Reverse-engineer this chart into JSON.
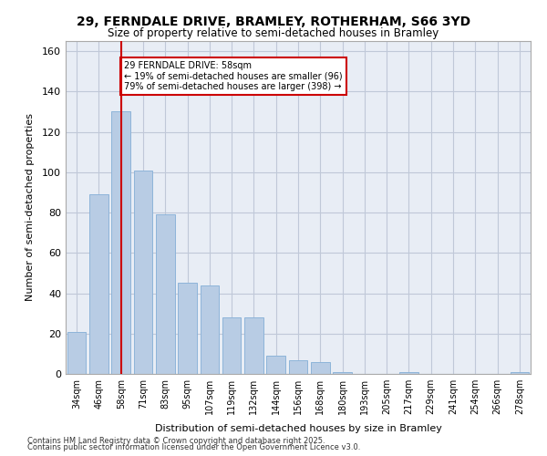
{
  "title_line1": "29, FERNDALE DRIVE, BRAMLEY, ROTHERHAM, S66 3YD",
  "title_line2": "Size of property relative to semi-detached houses in Bramley",
  "xlabel": "Distribution of semi-detached houses by size in Bramley",
  "ylabel": "Number of semi-detached properties",
  "categories": [
    "34sqm",
    "46sqm",
    "58sqm",
    "71sqm",
    "83sqm",
    "95sqm",
    "107sqm",
    "119sqm",
    "132sqm",
    "144sqm",
    "156sqm",
    "168sqm",
    "180sqm",
    "193sqm",
    "205sqm",
    "217sqm",
    "229sqm",
    "241sqm",
    "254sqm",
    "266sqm",
    "278sqm"
  ],
  "values": [
    21,
    89,
    130,
    101,
    79,
    45,
    44,
    28,
    28,
    9,
    7,
    6,
    1,
    0,
    0,
    1,
    0,
    0,
    0,
    0,
    1
  ],
  "bar_color": "#b8cce4",
  "bar_edge_color": "#8db4d9",
  "property_size": 58,
  "property_label": "29 FERNDALE DRIVE: 58sqm",
  "pct_smaller": 19,
  "n_smaller": 96,
  "pct_larger": 79,
  "n_larger": 398,
  "vline_color": "#cc0000",
  "annotation_box_color": "#cc0000",
  "ylim": [
    0,
    165
  ],
  "yticks": [
    0,
    20,
    40,
    60,
    80,
    100,
    120,
    140,
    160
  ],
  "grid_color": "#c0c8d8",
  "background_color": "#e8edf5",
  "footer_line1": "Contains HM Land Registry data © Crown copyright and database right 2025.",
  "footer_line2": "Contains public sector information licensed under the Open Government Licence v3.0."
}
